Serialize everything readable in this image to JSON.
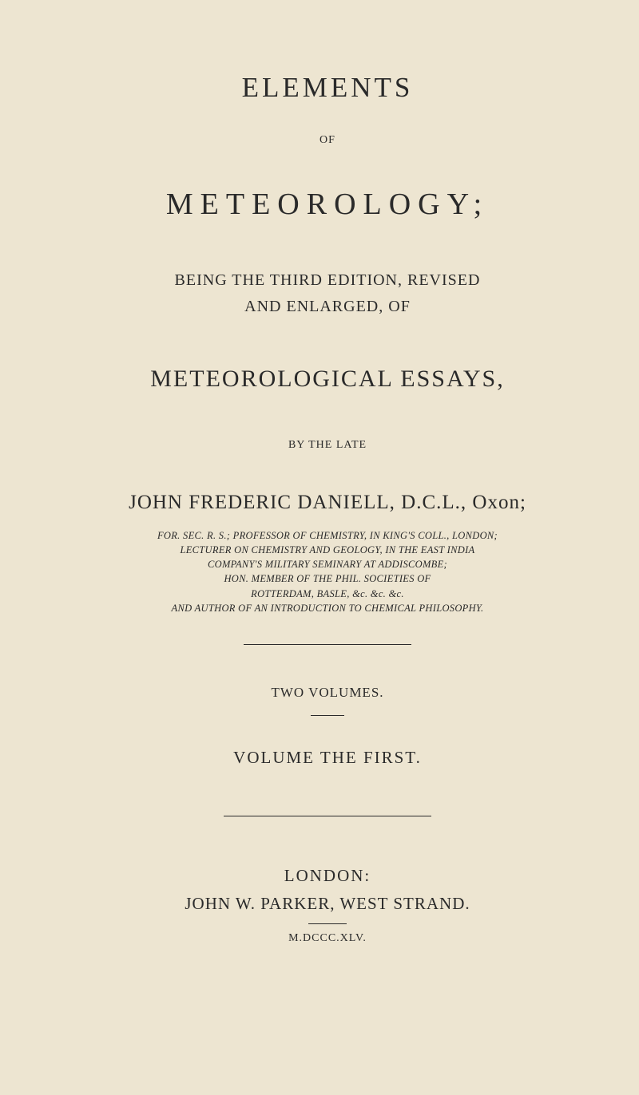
{
  "colors": {
    "paper_background": "#ede5d1",
    "ink": "#2a2a2a"
  },
  "typography": {
    "base_family": "Georgia / Times New Roman serif",
    "main_title_size_pt": 26,
    "subject_title_size_pt": 28,
    "essays_title_size_pt": 22,
    "author_size_pt": 19,
    "credentials_size_pt": 9,
    "body_caps_size_pt": 15
  },
  "main_title": "ELEMENTS",
  "of_label": "OF",
  "subject_title": "METEOROLOGY;",
  "edition": {
    "line1": "BEING THE THIRD EDITION, REVISED",
    "line2": "AND ENLARGED, OF"
  },
  "essays_title": "METEOROLOGICAL ESSAYS,",
  "by_the_late": "BY THE LATE",
  "author_line": "JOHN FREDERIC DANIELL, D.C.L., Oxon;",
  "credentials": {
    "l1": "FOR. SEC. R. S.; PROFESSOR OF CHEMISTRY, IN KING'S COLL., LONDON;",
    "l2": "LECTURER ON CHEMISTRY AND GEOLOGY, IN THE EAST INDIA",
    "l3": "COMPANY'S MILITARY SEMINARY AT ADDISCOMBE;",
    "l4": "HON. MEMBER OF THE PHIL. SOCIETIES OF",
    "l5": "ROTTERDAM, BASLE, &c. &c. &c.",
    "l6": "AND AUTHOR OF AN INTRODUCTION TO CHEMICAL PHILOSOPHY."
  },
  "two_volumes": "TWO VOLUMES.",
  "volume_first": "VOLUME THE FIRST.",
  "imprint": {
    "city": "LONDON:",
    "publisher": "JOHN W. PARKER, WEST STRAND.",
    "year": "M.DCCC.XLV."
  }
}
